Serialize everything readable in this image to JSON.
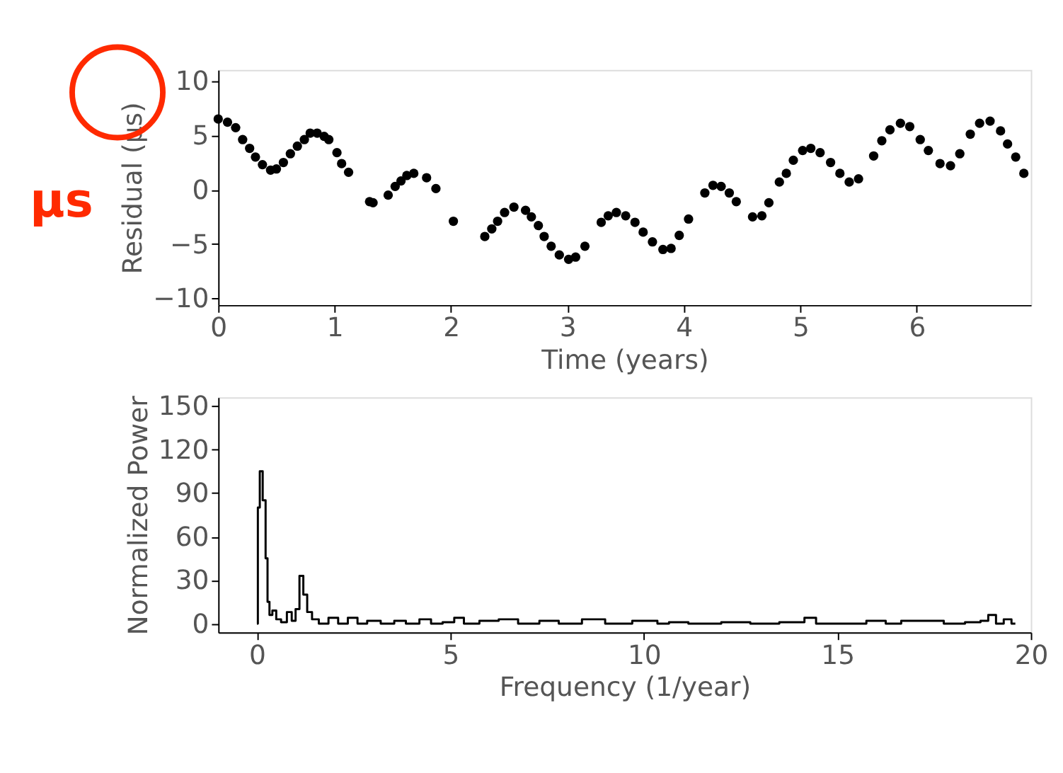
{
  "chart_data": [
    {
      "type": "scatter",
      "xlabel": "Time (years)",
      "ylabel": "Residual (μs)",
      "xlim": [
        0,
        6.98
      ],
      "ylim": [
        -10.6,
        11
      ],
      "xticks": [
        0,
        1,
        2,
        3,
        4,
        5,
        6
      ],
      "yticks": [
        -10,
        -5,
        0,
        5,
        10
      ],
      "grid": false,
      "marker": "circle",
      "annotations": [
        "μs"
      ],
      "x": [
        0,
        0.08,
        0.15,
        0.21,
        0.27,
        0.32,
        0.38,
        0.45,
        0.5,
        0.56,
        0.62,
        0.68,
        0.74,
        0.79,
        0.85,
        0.91,
        0.95,
        1.02,
        1.06,
        1.12,
        1.3,
        1.33,
        1.46,
        1.52,
        1.57,
        1.62,
        1.68,
        1.79,
        1.87,
        2.02,
        2.29,
        2.35,
        2.4,
        2.46,
        2.54,
        2.64,
        2.69,
        2.75,
        2.8,
        2.86,
        2.93,
        3.01,
        3.07,
        3.15,
        3.29,
        3.35,
        3.42,
        3.5,
        3.58,
        3.65,
        3.73,
        3.82,
        3.89,
        3.96,
        4.04,
        4.18,
        4.25,
        4.32,
        4.39,
        4.45,
        4.59,
        4.67,
        4.73,
        4.82,
        4.88,
        4.94,
        5.02,
        5.09,
        5.17,
        5.26,
        5.34,
        5.42,
        5.5,
        5.63,
        5.7,
        5.77,
        5.86,
        5.94,
        6.03,
        6.1,
        6.2,
        6.29,
        6.37,
        6.46,
        6.54,
        6.63,
        6.72,
        6.78,
        6.85,
        6.92
      ],
      "values": [
        6.5,
        6.2,
        5.7,
        4.6,
        3.8,
        3.0,
        2.3,
        1.8,
        1.9,
        2.5,
        3.3,
        4.0,
        4.6,
        5.2,
        5.2,
        4.9,
        4.6,
        3.4,
        2.4,
        1.6,
        -1.1,
        -1.2,
        -0.5,
        0.3,
        0.8,
        1.3,
        1.5,
        1.1,
        0.1,
        -2.9,
        -4.3,
        -3.6,
        -2.9,
        -2.1,
        -1.6,
        -1.9,
        -2.5,
        -3.3,
        -4.3,
        -5.2,
        -6.0,
        -6.4,
        -6.2,
        -5.2,
        -3.0,
        -2.4,
        -2.1,
        -2.4,
        -3.0,
        -3.9,
        -4.8,
        -5.5,
        -5.4,
        -4.2,
        -2.7,
        -0.3,
        0.4,
        0.3,
        -0.3,
        -1.1,
        -2.5,
        -2.4,
        -1.2,
        0.7,
        1.5,
        2.7,
        3.6,
        3.8,
        3.4,
        2.5,
        1.5,
        0.7,
        1.0,
        3.1,
        4.5,
        5.5,
        6.1,
        5.8,
        4.6,
        3.6,
        2.4,
        2.2,
        3.3,
        5.1,
        6.1,
        6.3,
        5.4,
        4.2,
        3.0,
        1.5
      ],
      "color": "#000000"
    },
    {
      "type": "step",
      "xlabel": "Frequency (1/year)",
      "ylabel": "Normalized Power",
      "xlim": [
        -1,
        20
      ],
      "ylim": [
        -6,
        156
      ],
      "xticks": [
        0,
        5,
        10,
        15,
        20
      ],
      "yticks": [
        0,
        30,
        60,
        90,
        120,
        150
      ],
      "grid": false,
      "marker": "none",
      "color": "#000000",
      "x": [
        0.0,
        0.05,
        0.1,
        0.2,
        0.25,
        0.3,
        0.35,
        0.45,
        0.55,
        0.7,
        0.85,
        0.95,
        1.05,
        1.15,
        1.25,
        1.35,
        1.5,
        1.7,
        2.0,
        2.2,
        2.5,
        2.7,
        3.0,
        3.4,
        3.7,
        4.0,
        4.4,
        4.6,
        5.0,
        5.2,
        5.5,
        6.0,
        6.5,
        7.0,
        7.6,
        8.0,
        8.8,
        9.2,
        10.2,
        10.5,
        10.8,
        11.5,
        12.5,
        13.0,
        14.0,
        14.3,
        14.6,
        15.5,
        16.0,
        16.5,
        16.8,
        17.5,
        18.0,
        18.6,
        18.8,
        19.0,
        19.2,
        19.4,
        19.6
      ],
      "values": [
        0,
        80,
        105,
        85,
        45,
        15,
        6,
        9,
        3,
        1,
        8,
        2,
        10,
        33,
        20,
        8,
        3,
        0,
        4,
        0,
        4,
        0,
        2,
        0,
        2,
        0,
        3,
        0,
        1,
        4,
        0,
        2,
        3,
        0,
        2,
        0,
        3,
        0,
        2,
        0,
        1,
        0,
        1,
        0,
        1,
        4,
        0,
        0,
        2,
        0,
        2,
        2,
        0,
        1,
        2,
        6,
        0,
        3,
        0
      ]
    }
  ]
}
